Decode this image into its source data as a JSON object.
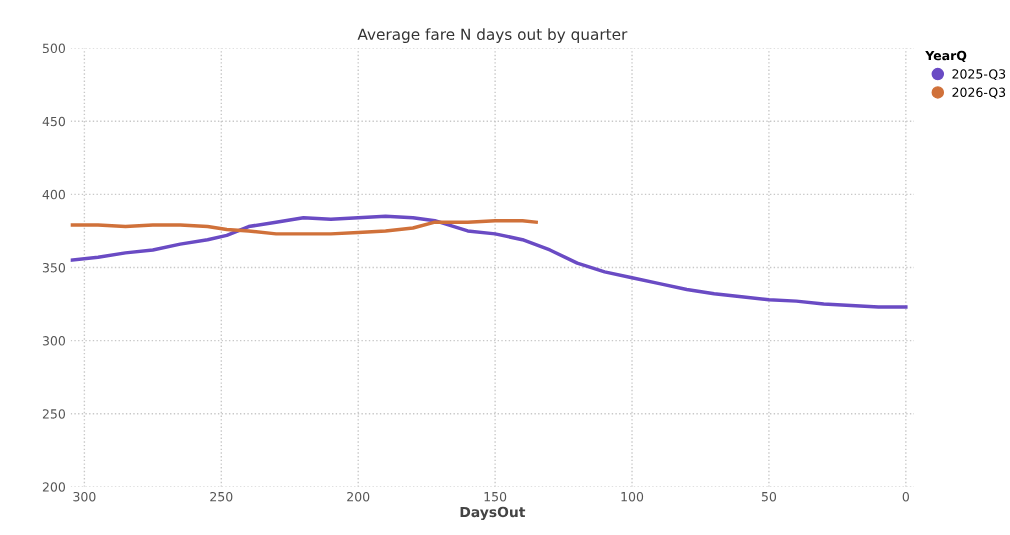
{
  "chart_data": {
    "type": "line",
    "title": "Average fare N days out by quarter",
    "xlabel": "DaysOut",
    "legend_title": "YearQ",
    "xlim": [
      305,
      -3
    ],
    "xticks": [
      300,
      250,
      200,
      150,
      100,
      50,
      0
    ],
    "ylim": [
      200,
      500
    ],
    "yticks": [
      200,
      250,
      300,
      350,
      400,
      450,
      500
    ],
    "grid": true,
    "legend": "top right",
    "line_style": "solid",
    "series": [
      {
        "name": "2025-Q3",
        "color": "#6a4bc4",
        "x": [
          305,
          295,
          285,
          275,
          265,
          255,
          248,
          240,
          230,
          220,
          210,
          200,
          190,
          180,
          172,
          165,
          160,
          150,
          140,
          130,
          120,
          110,
          100,
          90,
          80,
          70,
          60,
          50,
          40,
          30,
          20,
          10,
          0
        ],
        "values": [
          355,
          357,
          360,
          362,
          366,
          369,
          372,
          378,
          381,
          384,
          383,
          384,
          385,
          384,
          382,
          378,
          375,
          373,
          369,
          362,
          353,
          347,
          343,
          339,
          335,
          332,
          330,
          328,
          327,
          325,
          324,
          323,
          323
        ]
      },
      {
        "name": "2026-Q3",
        "color": "#d0713a",
        "x": [
          305,
          295,
          285,
          275,
          265,
          255,
          248,
          240,
          230,
          220,
          210,
          200,
          190,
          180,
          172,
          160,
          150,
          140,
          135
        ],
        "values": [
          379,
          379,
          378,
          379,
          379,
          378,
          376,
          375,
          373,
          373,
          373,
          374,
          375,
          377,
          381,
          381,
          382,
          382,
          381
        ]
      }
    ]
  }
}
